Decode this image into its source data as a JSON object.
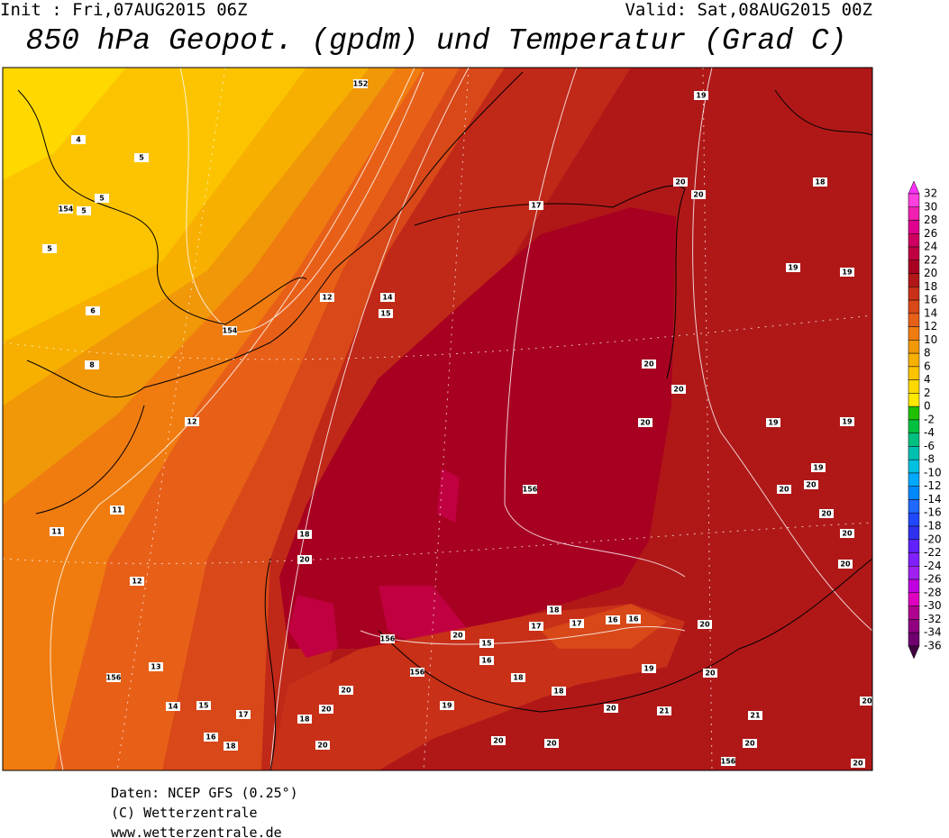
{
  "header": {
    "init": "Init : Fri,07AUG2015 06Z",
    "valid": "Valid: Sat,08AUG2015 00Z",
    "title": "850 hPa Geopot. (gpdm) und Temperatur (Grad C)"
  },
  "colorbar": {
    "levels": [
      32,
      30,
      28,
      26,
      24,
      22,
      20,
      18,
      16,
      14,
      12,
      10,
      8,
      6,
      4,
      2,
      0,
      -2,
      -4,
      -6,
      -8,
      -10,
      -12,
      -14,
      -16,
      -18,
      -20,
      -22,
      -24,
      -26,
      -28,
      -30,
      -32,
      -34,
      -36
    ],
    "colors": [
      "#ff30ff",
      "#ff40e0",
      "#f020b0",
      "#e00090",
      "#d00060",
      "#c00040",
      "#a80020",
      "#b01818",
      "#c83018",
      "#d84818",
      "#e86018",
      "#f07c10",
      "#f09808",
      "#f8b000",
      "#fcc400",
      "#ffd800",
      "#ffe800",
      "#20c000",
      "#00c040",
      "#00c080",
      "#00c0b0",
      "#00c0e0",
      "#00a8ff",
      "#0088ff",
      "#2068ff",
      "#2048ff",
      "#3030f0",
      "#6020ff",
      "#8020ff",
      "#a020f0",
      "#c000e0",
      "#e000c0",
      "#b00090",
      "#900080",
      "#700070",
      "#400040"
    ]
  },
  "contour_labels": [
    152,
    154,
    154,
    4,
    5,
    5,
    5,
    5,
    6,
    8,
    12,
    11,
    11,
    12,
    13,
    156,
    14,
    15,
    16,
    17,
    18,
    12,
    14,
    15,
    17,
    19,
    20,
    20,
    18,
    19,
    19,
    20,
    20,
    20,
    19,
    19,
    156,
    18,
    20,
    19,
    20,
    20,
    20,
    20,
    20,
    18,
    17,
    17,
    16,
    16,
    20,
    19,
    20,
    18,
    18,
    20,
    20,
    18,
    20,
    20,
    20,
    20,
    21,
    21,
    156,
    156,
    15,
    16,
    20,
    19,
    20,
    156,
    20,
    20
  ],
  "footer": [
    "Daten: NCEP GFS (0.25°)",
    "(C) Wetterzentrale",
    "www.wetterzentrale.de"
  ]
}
